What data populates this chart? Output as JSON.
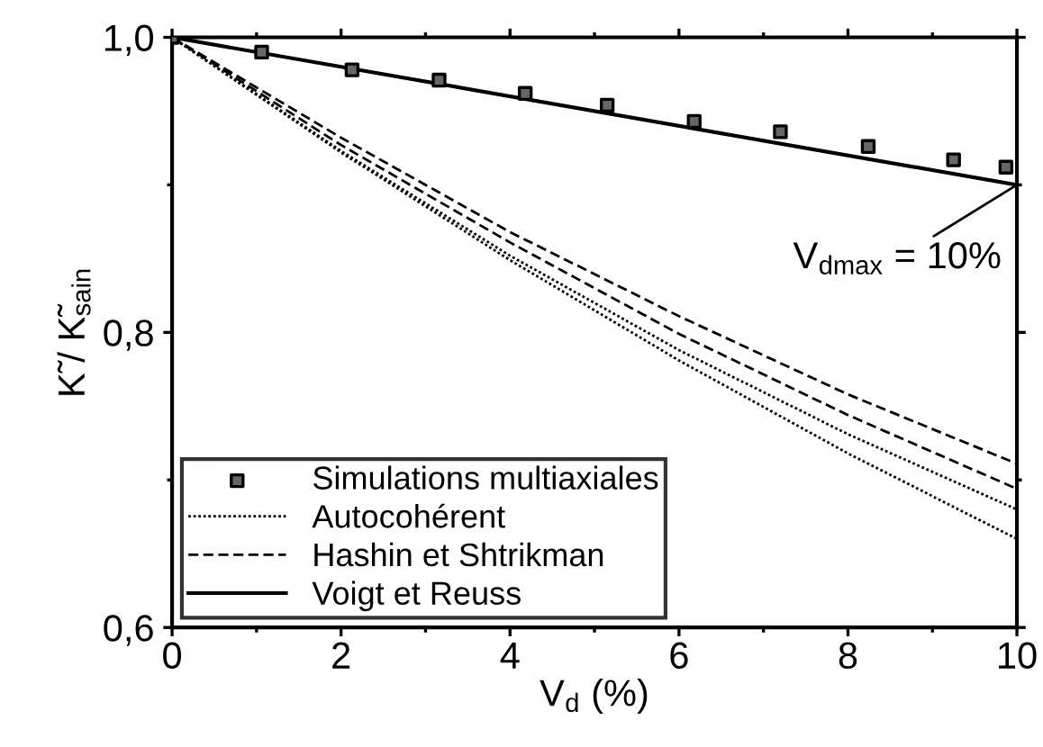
{
  "chart_data": {
    "type": "line",
    "xlabel": "V$_{d}$ (%)",
    "ylabel": "K̃ / K̃$_{sain}$",
    "xlim": [
      0,
      10
    ],
    "xticks": [
      0,
      2,
      4,
      6,
      8,
      10
    ],
    "ylim": [
      0.6,
      1.0
    ],
    "yticks": [
      {
        "value": 0.6,
        "label": "0,6"
      },
      {
        "value": 0.8,
        "label": "0,8"
      },
      {
        "value": 1.0,
        "label": "1,0"
      }
    ],
    "legend": "bottom left",
    "grid": false,
    "annotations": [
      {
        "text": "V$_{dmax}$ = 10%",
        "x": 10,
        "y": 0.9
      }
    ],
    "series": [
      {
        "name": "Simulations multiaxiales",
        "type": "scatter",
        "marker": "square",
        "color": "#000000",
        "x": [
          0,
          1.06,
          2.13,
          3.16,
          4.18,
          5.15,
          6.18,
          7.2,
          8.24,
          9.25,
          9.87
        ],
        "values": [
          1.0,
          0.99,
          0.978,
          0.971,
          0.962,
          0.954,
          0.943,
          0.936,
          0.926,
          0.917,
          0.912
        ]
      },
      {
        "name": "Autocohérent",
        "line_style": "dotted",
        "color": "#000000",
        "x": [
          0,
          2,
          4,
          6,
          8,
          10
        ],
        "values": [
          1.0,
          0.922,
          0.849,
          0.781,
          0.718,
          0.66
        ]
      },
      {
        "line_style": "dotted",
        "color": "#000000",
        "x": [
          0,
          2,
          4,
          6,
          8,
          10
        ],
        "values": [
          1.0,
          0.923,
          0.852,
          0.788,
          0.731,
          0.68
        ]
      },
      {
        "name": "Hashin et Shtrikman",
        "line_style": "dashed",
        "color": "#000000",
        "x": [
          0,
          2,
          4,
          6,
          8,
          10
        ],
        "values": [
          1.0,
          0.927,
          0.861,
          0.799,
          0.744,
          0.694
        ]
      },
      {
        "line_style": "dashed",
        "color": "#000000",
        "x": [
          0,
          2,
          4,
          6,
          8,
          10
        ],
        "values": [
          1.0,
          0.932,
          0.868,
          0.811,
          0.758,
          0.711
        ]
      },
      {
        "name": "Voigt et Reuss",
        "line_style": "solid",
        "color": "#000000",
        "x": [
          0,
          10
        ],
        "values": [
          1.0,
          0.9
        ]
      }
    ]
  }
}
